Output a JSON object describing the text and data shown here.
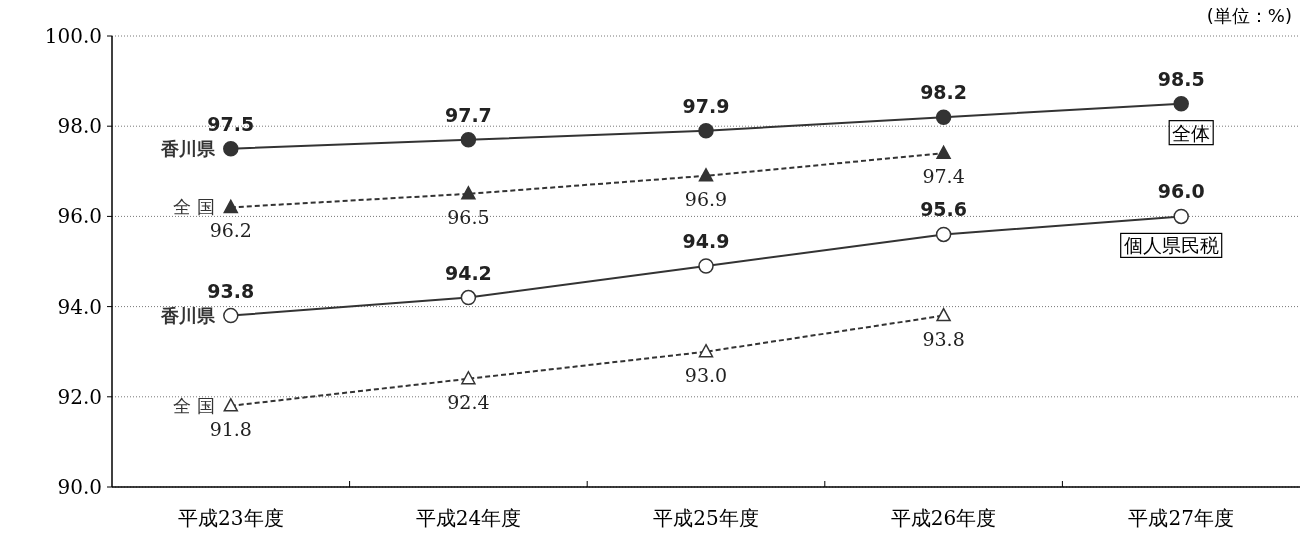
{
  "chart_data": {
    "type": "line",
    "categories": [
      "平成23年度",
      "平成24年度",
      "平成25年度",
      "平成26年度",
      "平成27年度"
    ],
    "series": [
      {
        "name": "香川県",
        "color": "#333333",
        "marker": "circle",
        "line_style": "solid",
        "values": [
          97.5,
          97.7,
          97.9,
          98.2,
          98.5
        ],
        "value_labels": [
          "97.5",
          "97.7",
          "97.9",
          "98.2",
          "98.5"
        ]
      },
      {
        "name": "全 国",
        "color": "#333333",
        "marker": "triangle",
        "line_style": "dashed",
        "values": [
          96.2,
          96.5,
          96.9,
          97.4,
          null
        ],
        "value_labels": [
          "96.2",
          "96.5",
          "96.9",
          "97.4",
          null
        ]
      },
      {
        "name": "香川県",
        "color": "#333333",
        "marker": "circle",
        "line_style": "solid",
        "values": [
          93.8,
          94.2,
          94.9,
          95.6,
          96.0
        ],
        "value_labels": [
          "93.8",
          "94.2",
          "94.9",
          "95.6",
          "96.0"
        ]
      },
      {
        "name": "全 国",
        "color": "#333333",
        "marker": "triangle",
        "line_style": "dashed",
        "values": [
          91.8,
          92.4,
          93.0,
          93.8,
          null
        ],
        "value_labels": [
          "91.8",
          "92.4",
          "93.0",
          "93.8",
          null
        ]
      }
    ],
    "ylim": [
      90,
      100
    ],
    "yticks": [
      {
        "value": 90,
        "label": "90.0"
      },
      {
        "value": 92,
        "label": "92.0"
      },
      {
        "value": 94,
        "label": "94.0"
      },
      {
        "value": 96,
        "label": "96.0"
      },
      {
        "value": 98,
        "label": "98.0"
      },
      {
        "value": 100,
        "label": "100.0"
      }
    ],
    "grid": "y",
    "annotations": [
      "(単位：%)",
      "全体",
      "個人県民税"
    ]
  }
}
